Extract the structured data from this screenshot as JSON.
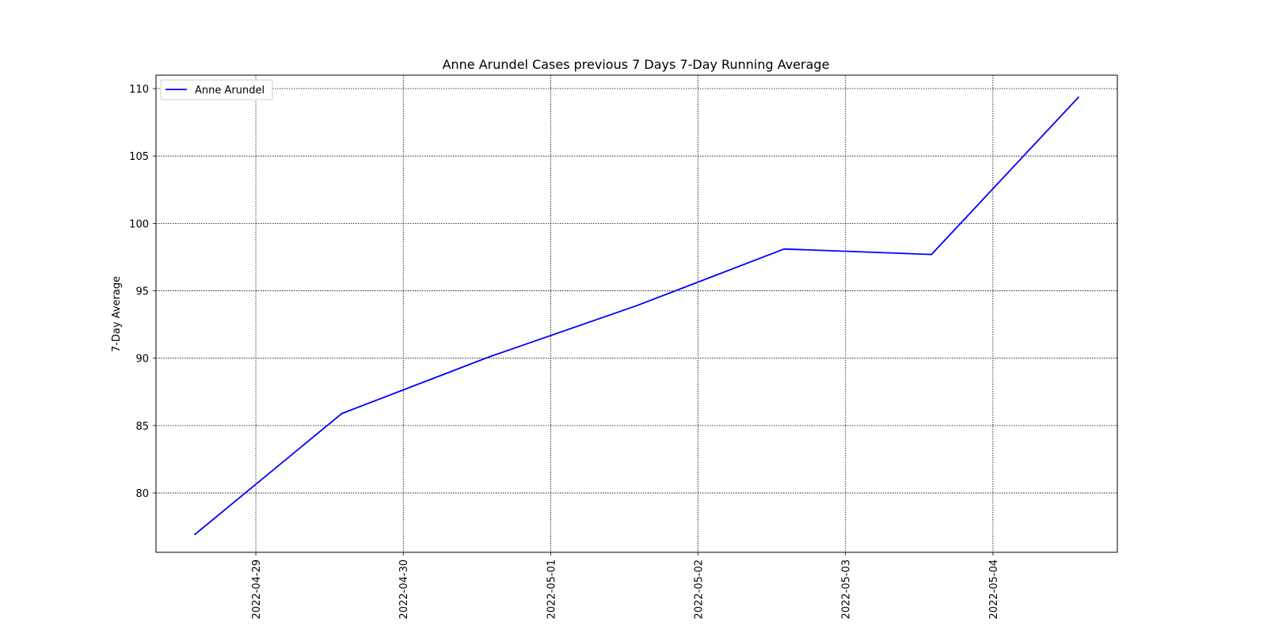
{
  "chart_data": {
    "type": "line",
    "title": "Anne Arundel Cases previous 7 Days 7-Day Running Average",
    "xlabel": "",
    "ylabel": "7-Day Average",
    "x": [
      "2022-04-28T14:00",
      "2022-04-29T14:00",
      "2022-04-30T14:00",
      "2022-05-01T14:00",
      "2022-05-02T14:00",
      "2022-05-03T14:00",
      "2022-05-04T14:00"
    ],
    "x_ticks": [
      "2022-04-29",
      "2022-04-30",
      "2022-05-01",
      "2022-05-02",
      "2022-05-03",
      "2022-05-04"
    ],
    "xlim": [
      "2022-04-28T07:45",
      "2022-05-04T20:15"
    ],
    "ylim": [
      75.6,
      111.0
    ],
    "y_ticks": [
      80,
      85,
      90,
      95,
      100,
      105,
      110
    ],
    "series": [
      {
        "name": "Anne Arundel",
        "color": "#0000ff",
        "values": [
          76.9,
          85.9,
          90.1,
          93.9,
          98.1,
          97.7,
          109.4
        ]
      }
    ],
    "grid": true,
    "legend": "top-left"
  }
}
